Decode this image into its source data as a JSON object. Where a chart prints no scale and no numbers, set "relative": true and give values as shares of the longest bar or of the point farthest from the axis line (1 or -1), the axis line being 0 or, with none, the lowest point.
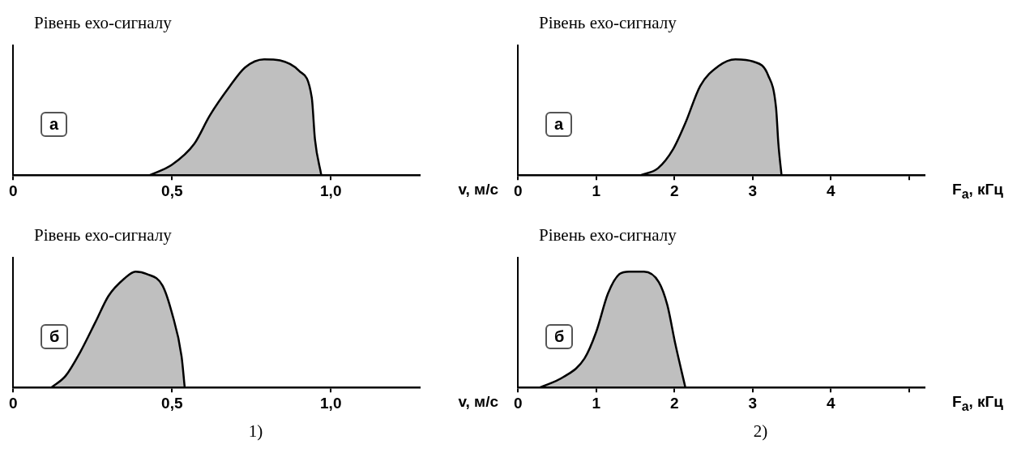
{
  "chart_data": [
    {
      "type": "area",
      "relative": true,
      "ylabel": "Рівень ехо-сигналу",
      "xlabel": "v, м/с",
      "annotations": [
        "а"
      ],
      "xlim": [
        0,
        1.28
      ],
      "xticks": [
        0,
        {
          "value": 0.5,
          "label": "0,5"
        },
        {
          "value": 1,
          "label": "1,0"
        }
      ],
      "series": [
        {
          "color": "#000000",
          "x": [
            0.43,
            0.5,
            0.57,
            0.62,
            0.68,
            0.73,
            0.79,
            0.84,
            0.9,
            0.94,
            0.95,
            0.97
          ],
          "values": [
            0,
            0.09,
            0.27,
            0.52,
            0.76,
            0.93,
            1,
            0.99,
            0.9,
            0.67,
            0.31,
            0
          ]
        }
      ]
    },
    {
      "type": "area",
      "relative": true,
      "ylabel": "Рівень ехо-сигналу",
      "xlabel": "F$_{a}$, кГц",
      "annotations": [
        "а"
      ],
      "xlim": [
        0,
        5.2
      ],
      "xticks": [
        0,
        1,
        2,
        3,
        4,
        {
          "value": 5,
          "label": null
        }
      ],
      "series": [
        {
          "color": "#000000",
          "x": [
            1.57,
            1.79,
            1.98,
            2.14,
            2.33,
            2.56,
            2.78,
            3.01,
            3.2,
            3.3,
            3.33,
            3.37
          ],
          "values": [
            0,
            0.06,
            0.22,
            0.45,
            0.77,
            0.94,
            1,
            0.98,
            0.86,
            0.58,
            0.27,
            0
          ]
        }
      ]
    },
    {
      "type": "area",
      "relative": true,
      "ylabel": "Рівень ехо-сигналу",
      "xlabel": "v, м/с",
      "annotations": [
        "б",
        "1)"
      ],
      "xlim": [
        0,
        1.28
      ],
      "xticks": [
        0,
        {
          "value": 0.5,
          "label": "0,5"
        },
        {
          "value": 1,
          "label": "1,0"
        }
      ],
      "series": [
        {
          "color": "#000000",
          "x": [
            0.12,
            0.165,
            0.21,
            0.26,
            0.3,
            0.35,
            0.385,
            0.42,
            0.47,
            0.5,
            0.53,
            0.54
          ],
          "values": [
            0,
            0.1,
            0.3,
            0.57,
            0.79,
            0.94,
            1,
            0.98,
            0.88,
            0.64,
            0.27,
            0
          ]
        }
      ]
    },
    {
      "type": "area",
      "relative": true,
      "ylabel": "Рівень ехо-сигналу",
      "xlabel": "F$_{a}$, кГц",
      "annotations": [
        "б",
        "2)"
      ],
      "xlim": [
        0,
        5.2
      ],
      "xticks": [
        0,
        1,
        2,
        3,
        4,
        {
          "value": 5,
          "label": null
        }
      ],
      "series": [
        {
          "color": "#000000",
          "x": [
            0.28,
            0.58,
            0.85,
            1,
            1.15,
            1.3,
            1.42,
            1.61,
            1.8,
            1.91,
            2.01,
            2.14
          ],
          "values": [
            0,
            0.09,
            0.25,
            0.48,
            0.81,
            0.98,
            1,
            1,
            0.91,
            0.71,
            0.38,
            0
          ]
        }
      ]
    }
  ]
}
